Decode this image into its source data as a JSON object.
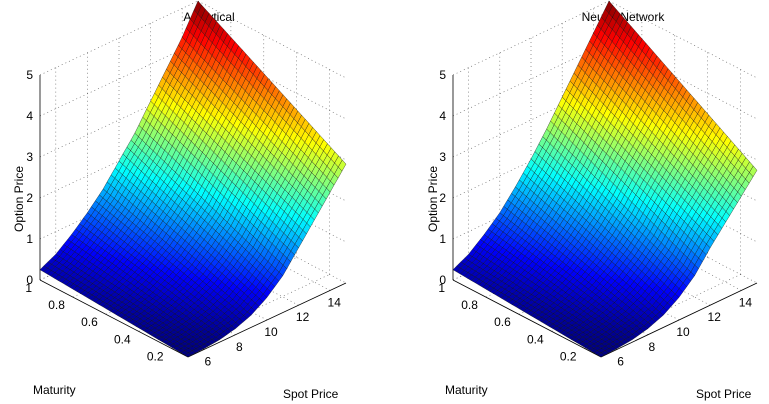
{
  "chart_data": [
    {
      "type": "surface",
      "title": "Analytical",
      "xlabel": "Spot Price",
      "ylabel": "Maturity",
      "zlabel": "Option Price",
      "xlim": [
        5,
        15
      ],
      "ylim": [
        0.1,
        1
      ],
      "zlim": [
        0,
        5
      ],
      "xticks": [
        6,
        8,
        10,
        12,
        14
      ],
      "yticks": [
        0.2,
        0.4,
        0.6,
        0.8,
        1
      ],
      "zticks": [
        0,
        1,
        2,
        3,
        4,
        5
      ],
      "grid": true,
      "colormap": "jet",
      "spot_range": [
        5,
        15
      ],
      "maturity_range": [
        0.1,
        1
      ],
      "profile_spot": [
        5,
        6,
        7,
        8,
        9,
        10,
        11,
        12,
        13,
        14,
        15
      ],
      "price_at_max_maturity": [
        0.25,
        0.45,
        0.75,
        1.1,
        1.5,
        2.0,
        2.5,
        3.1,
        3.7,
        4.3,
        5.0
      ],
      "price_at_min_maturity": [
        0.0,
        0.02,
        0.06,
        0.15,
        0.3,
        0.55,
        0.9,
        1.4,
        1.9,
        2.4,
        2.9
      ]
    },
    {
      "type": "surface",
      "title": "Neural Network",
      "xlabel": "Spot Price",
      "ylabel": "Maturity",
      "zlabel": "Option Price",
      "xlim": [
        5,
        15
      ],
      "ylim": [
        0.1,
        1
      ],
      "zlim": [
        0,
        5
      ],
      "xticks": [
        6,
        8,
        10,
        12,
        14
      ],
      "yticks": [
        0.2,
        0.4,
        0.6,
        0.8,
        1
      ],
      "zticks": [
        0,
        1,
        2,
        3,
        4,
        5
      ],
      "grid": true,
      "colormap": "jet",
      "spot_range": [
        5,
        15
      ],
      "maturity_range": [
        0.1,
        1
      ],
      "profile_spot": [
        5,
        6,
        7,
        8,
        9,
        10,
        11,
        12,
        13,
        14,
        15
      ],
      "price_at_max_maturity": [
        0.25,
        0.45,
        0.75,
        1.1,
        1.55,
        2.05,
        2.6,
        3.2,
        3.8,
        4.4,
        5.0
      ],
      "price_at_min_maturity": [
        0.0,
        0.02,
        0.06,
        0.15,
        0.3,
        0.55,
        0.9,
        1.4,
        1.85,
        2.3,
        2.75
      ]
    }
  ]
}
